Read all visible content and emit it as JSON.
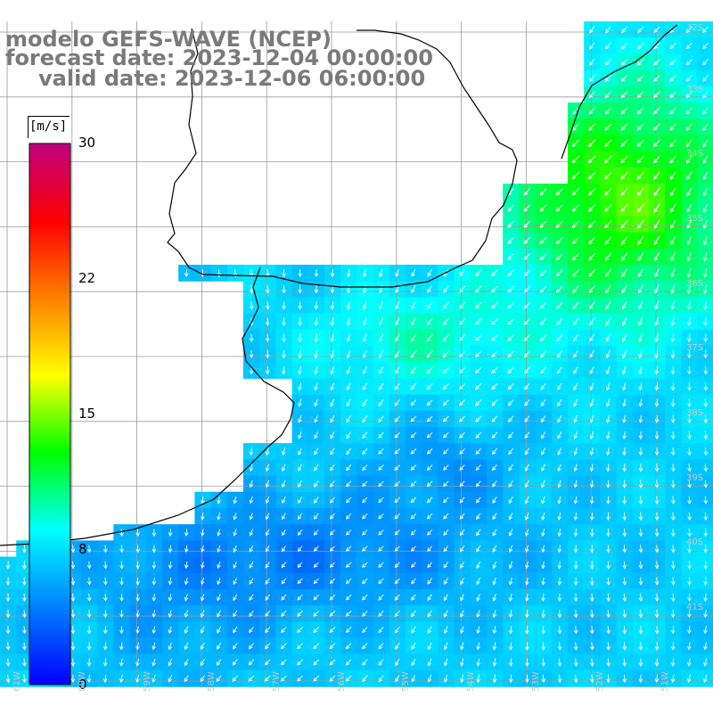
{
  "header": {
    "line1": "modelo GEFS-WAVE (NCEP)",
    "line2": "forecast date: 2023-12-04 00:00:00",
    "line3": "valid date: 2023-12-06 06:00:00"
  },
  "colorbar": {
    "unit": "[m/s]",
    "ticks": [
      "30",
      "22",
      "15",
      "8",
      "0"
    ],
    "stops": [
      "#0000ff",
      "#0080ff",
      "#00ffff",
      "#00ff00",
      "#ffff00",
      "#ff8000",
      "#ff0000",
      "#c0007f"
    ],
    "min": 0,
    "max": 30
  },
  "map": {
    "lat_labels": [
      "32S",
      "33S",
      "34S",
      "35S",
      "36S",
      "37S",
      "38S",
      "39S",
      "40S",
      "41S"
    ],
    "lon_labels": [
      "61W",
      "60W",
      "59W",
      "58W",
      "57W",
      "56W",
      "55W",
      "54W",
      "53W",
      "52W",
      "51W"
    ],
    "grid_color": "#9a9a9a",
    "coast_color": "#000000"
  },
  "chart_data": {
    "type": "heatmap",
    "variable": "wind speed",
    "unit": "m/s",
    "scale_range": [
      0,
      30
    ],
    "approx_speed_by_area": [
      {
        "area": "northeast, off southern Brazil coast",
        "speed": 13
      },
      {
        "area": "Rio de la Plata mouth / off Uruguay",
        "speed": 9
      },
      {
        "area": "central open ocean",
        "speed": 7
      },
      {
        "area": "off Buenos Aires province coast",
        "speed": 4
      },
      {
        "area": "southern band",
        "speed": 5
      }
    ],
    "arrows_direction": "mostly toward southwest / south"
  }
}
